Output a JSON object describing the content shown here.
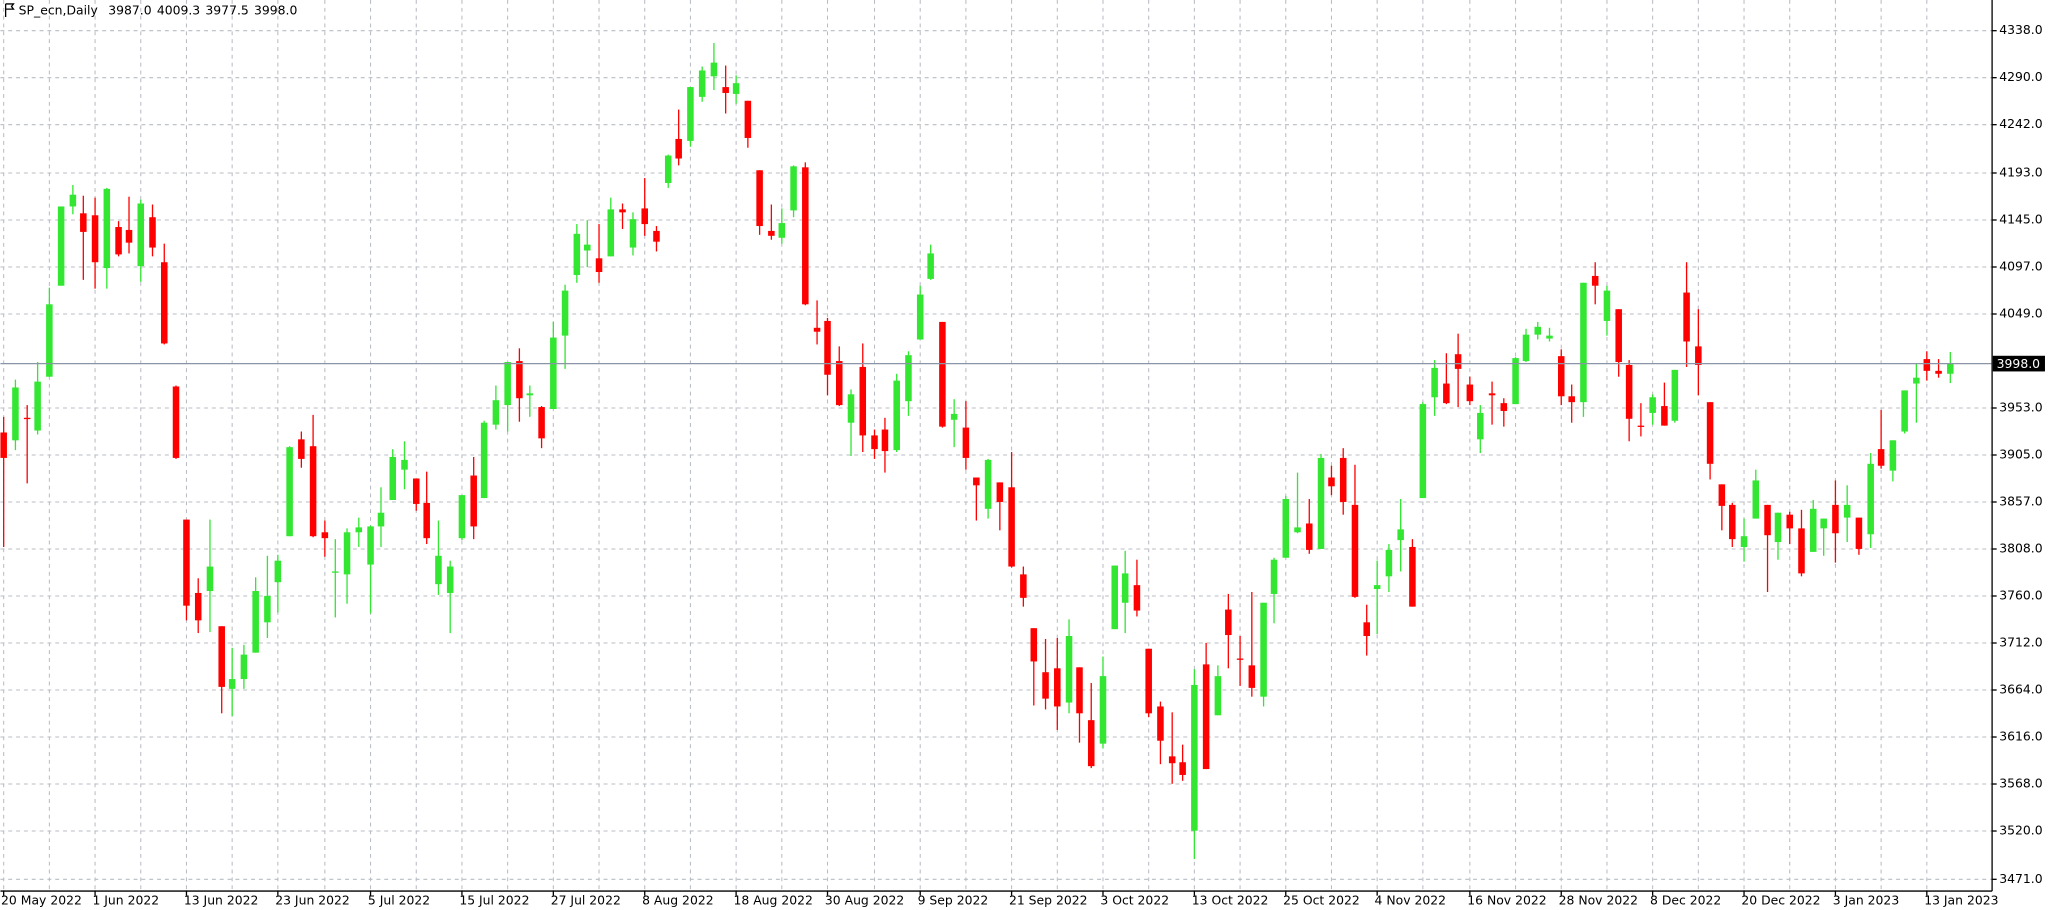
{
  "chart_data": {
    "type": "candlestick",
    "title": "SP_ecn,Daily",
    "header_ohlc": [
      "3987.0",
      "4009.3",
      "3977.5",
      "3998.0"
    ],
    "up_color": "#32e632",
    "down_color": "#ff0000",
    "grid": true,
    "ylim": [
      3459,
      4369
    ],
    "yticks": [
      {
        "value": 4338,
        "label": "4338.0"
      },
      {
        "value": 4290,
        "label": "4290.0"
      },
      {
        "value": 4242,
        "label": "4242.0"
      },
      {
        "value": 4193,
        "label": "4193.0"
      },
      {
        "value": 4145,
        "label": "4145.0"
      },
      {
        "value": 4097,
        "label": "4097.0"
      },
      {
        "value": 4049,
        "label": "4049.0"
      },
      {
        "value": 3953,
        "label": "3953.0"
      },
      {
        "value": 3905,
        "label": "3905.0"
      },
      {
        "value": 3857,
        "label": "3857.0"
      },
      {
        "value": 3808,
        "label": "3808.0"
      },
      {
        "value": 3760,
        "label": "3760.0"
      },
      {
        "value": 3712,
        "label": "3712.0"
      },
      {
        "value": 3664,
        "label": "3664.0"
      },
      {
        "value": 3616,
        "label": "3616.0"
      },
      {
        "value": 3568,
        "label": "3568.0"
      },
      {
        "value": 3520,
        "label": "3520.0"
      },
      {
        "value": 3471,
        "label": "3471.0"
      }
    ],
    "current_price": {
      "value": 3998,
      "label": "3998.0"
    },
    "categories": [
      "20 May 2022",
      null,
      null,
      null,
      null,
      null,
      null,
      null,
      "1 Jun 2022",
      null,
      null,
      null,
      null,
      null,
      null,
      null,
      "13 Jun 2022",
      null,
      null,
      null,
      null,
      null,
      null,
      null,
      "23 Jun 2022",
      null,
      null,
      null,
      null,
      null,
      null,
      null,
      "5 Jul 2022",
      null,
      null,
      null,
      null,
      null,
      null,
      null,
      "15 Jul 2022",
      null,
      null,
      null,
      null,
      null,
      null,
      null,
      "27 Jul 2022",
      null,
      null,
      null,
      null,
      null,
      null,
      null,
      "8 Aug 2022",
      null,
      null,
      null,
      null,
      null,
      null,
      null,
      "18 Aug 2022",
      null,
      null,
      null,
      null,
      null,
      null,
      null,
      "30 Aug 2022",
      null,
      null,
      null,
      null,
      null,
      null,
      null,
      "9 Sep 2022",
      null,
      null,
      null,
      null,
      null,
      null,
      null,
      "21 Sep 2022",
      null,
      null,
      null,
      null,
      null,
      null,
      null,
      "3 Oct 2022",
      null,
      null,
      null,
      null,
      null,
      null,
      null,
      "13 Oct 2022",
      null,
      null,
      null,
      null,
      null,
      null,
      null,
      "25 Oct 2022",
      null,
      null,
      null,
      null,
      null,
      null,
      null,
      "4 Nov 2022",
      null,
      null,
      null,
      null,
      null,
      null,
      null,
      "16 Nov 2022",
      null,
      null,
      null,
      null,
      null,
      null,
      null,
      "28 Nov 2022",
      null,
      null,
      null,
      null,
      null,
      null,
      null,
      "8 Dec 2022",
      null,
      null,
      null,
      null,
      null,
      null,
      null,
      "20 Dec 2022",
      null,
      null,
      null,
      null,
      null,
      null,
      null,
      "3 Jan 2023",
      null,
      null,
      null,
      null,
      null,
      null,
      null,
      "13 Jan 2023",
      null,
      null
    ],
    "open": [
      3927,
      3919,
      3942,
      3929,
      3984,
      4077,
      4158,
      4151,
      4149,
      4095,
      4137,
      4134,
      4097,
      4147,
      4101,
      3974,
      3838,
      3763,
      3765,
      3729,
      3665,
      3675,
      3702,
      3733,
      3774,
      3821,
      3920,
      3913,
      3825,
      3785,
      3782,
      3825,
      3792,
      3831,
      3858,
      3889,
      3880,
      3855,
      3772,
      3763,
      3819,
      3883,
      3860,
      3935,
      3955,
      4000,
      3965,
      3953,
      3951,
      4026,
      4088,
      4113,
      4105,
      4107,
      4155,
      4116,
      4156,
      4133,
      4182,
      4227,
      4225,
      4270,
      4291,
      4280,
      4273,
      4266,
      4195,
      4133,
      4126,
      4154,
      4198,
      4034,
      4041,
      4000,
      3937,
      3994,
      3924,
      3930,
      3909,
      3959,
      4022,
      4084,
      4040,
      3940,
      3932,
      3881,
      3849,
      3876,
      3871,
      3782,
      3727,
      3682,
      3686,
      3651,
      3687,
      3633,
      3609,
      3726,
      3753,
      3771,
      3706,
      3647,
      3596,
      3590,
      3520,
      3690,
      3638,
      3746,
      3696,
      3689,
      3657,
      3762,
      3799,
      3825,
      3834,
      3808,
      3881,
      3901,
      3853,
      3733,
      3767,
      3780,
      3817,
      3810,
      3860,
      3963,
      3977,
      4007,
      3976,
      3920,
      3967,
      3957,
      3956,
      4000,
      4027,
      4023,
      4005,
      3964,
      3958,
      4087,
      4041,
      4053,
      3996,
      3934,
      3947,
      3954,
      3939,
      4070,
      4015,
      3958,
      3874,
      3853,
      3810,
      3839,
      3853,
      3815,
      3843,
      3829,
      3805,
      3829,
      3853,
      3840,
      3840,
      3823,
      3910,
      3888,
      3928,
      3977,
      4002,
      3990,
      3987
    ],
    "high": [
      3943,
      3981,
      3955,
      3999,
      4075,
      4158,
      4180,
      4169,
      4167,
      4177,
      4143,
      4168,
      4165,
      4160,
      4120,
      3975,
      3838,
      3778,
      3838,
      3729,
      3707,
      3710,
      3779,
      3801,
      3802,
      3913,
      3928,
      3945,
      3837,
      3818,
      3829,
      3840,
      3832,
      3871,
      3910,
      3918,
      3880,
      3887,
      3837,
      3796,
      3863,
      3902,
      3939,
      3975,
      3999,
      4013,
      3975,
      3954,
      4040,
      4078,
      4140,
      4144,
      4140,
      4167,
      4161,
      4152,
      4187,
      4138,
      4211,
      4257,
      4280,
      4301,
      4325,
      4302,
      4292,
      4266,
      4195,
      4160,
      4156,
      4200,
      4203,
      4062,
      4044,
      4015,
      3971,
      4018,
      3930,
      3942,
      3987,
      4010,
      4077,
      4119,
      4040,
      3961,
      3959,
      3880,
      3900,
      3876,
      3907,
      3790,
      3727,
      3716,
      3717,
      3736,
      3687,
      3671,
      3698,
      3791,
      3806,
      3797,
      3706,
      3652,
      3641,
      3608,
      3685,
      3712,
      3689,
      3762,
      3719,
      3764,
      3753,
      3799,
      3862,
      3886,
      3859,
      3905,
      3893,
      3911,
      3894,
      3751,
      3796,
      3813,
      3859,
      3818,
      3958,
      4001,
      4008,
      4028,
      3984,
      3955,
      3979,
      3962,
      4004,
      4033,
      4040,
      4034,
      4012,
      3976,
      4080,
      4101,
      4077,
      4053,
      4001,
      3957,
      3966,
      3978,
      3991,
      4101,
      4053,
      3958,
      3874,
      3855,
      3839,
      3889,
      3853,
      3845,
      3846,
      3848,
      3858,
      3839,
      3878,
      3873,
      3840,
      3906,
      3950,
      3919,
      3970,
      3997,
      4010,
      4002,
      4009.3
    ],
    "low": [
      3810,
      3909,
      3875,
      3925,
      3984,
      4077,
      4150,
      4083,
      4074,
      4074,
      4107,
      4110,
      4081,
      4107,
      4017,
      3900,
      3735,
      3722,
      3723,
      3640,
      3637,
      3665,
      3702,
      3717,
      3743,
      3821,
      3891,
      3820,
      3800,
      3738,
      3752,
      3810,
      3742,
      3810,
      3858,
      3869,
      3847,
      3813,
      3761,
      3722,
      3817,
      3818,
      3860,
      3930,
      3928,
      3938,
      3943,
      3911,
      3951,
      3992,
      4080,
      4096,
      4080,
      4107,
      4135,
      4108,
      4128,
      4112,
      4177,
      4200,
      4219,
      4265,
      4277,
      4253,
      4263,
      4218,
      4129,
      4124,
      4120,
      4147,
      4057,
      4017,
      3965,
      3954,
      3903,
      3907,
      3900,
      3886,
      3907,
      3944,
      4022,
      4083,
      3932,
      3912,
      3889,
      3837,
      3839,
      3827,
      3789,
      3749,
      3648,
      3644,
      3623,
      3640,
      3610,
      3584,
      3604,
      3726,
      3722,
      3739,
      3636,
      3588,
      3568,
      3571,
      3491,
      3583,
      3638,
      3686,
      3668,
      3657,
      3647,
      3732,
      3799,
      3824,
      3803,
      3808,
      3863,
      3843,
      3758,
      3699,
      3721,
      3764,
      3785,
      3749,
      3860,
      3944,
      3956,
      3953,
      3955,
      3906,
      3935,
      3933,
      3956,
      3999,
      4022,
      4020,
      3955,
      3937,
      3943,
      4058,
      4026,
      3984,
      3918,
      3923,
      3935,
      3934,
      3937,
      3994,
      3965,
      3879,
      3827,
      3810,
      3795,
      3839,
      3764,
      3797,
      3813,
      3780,
      3805,
      3801,
      3794,
      3815,
      3802,
      3809,
      3890,
      3877,
      3926,
      3937,
      3980,
      3983,
      3977.5
    ],
    "close": [
      3901,
      3973,
      3941,
      3979,
      4058,
      4158,
      4170,
      4132,
      4101,
      4176,
      4109,
      4121,
      4161,
      4116,
      4018,
      3901,
      3750,
      3735,
      3790,
      3667,
      3675,
      3700,
      3765,
      3760,
      3796,
      3912,
      3900,
      3821,
      3819,
      3785,
      3825,
      3830,
      3831,
      3845,
      3902,
      3899,
      3854,
      3819,
      3801,
      3790,
      3863,
      3831,
      3937,
      3960,
      3999,
      3962,
      3967,
      3921,
      4024,
      4072,
      4130,
      4119,
      4091,
      4155,
      4152,
      4145,
      4140,
      4122,
      4210,
      4207,
      4280,
      4297,
      4305,
      4274,
      4284,
      4228,
      4138,
      4128,
      4141,
      4199,
      4058,
      4030,
      3986,
      3955,
      3966,
      3924,
      3910,
      3908,
      3980,
      4006,
      4068,
      4110,
      3933,
      3946,
      3901,
      3873,
      3899,
      3856,
      3790,
      3758,
      3693,
      3655,
      3647,
      3719,
      3640,
      3586,
      3678,
      3791,
      3783,
      3745,
      3640,
      3612,
      3589,
      3577,
      3669,
      3583,
      3678,
      3720,
      3695,
      3666,
      3753,
      3797,
      3859,
      3830,
      3807,
      3901,
      3872,
      3856,
      3759,
      3719,
      3771,
      3807,
      3828,
      3749,
      3956,
      3993,
      3957,
      3992,
      3959,
      3947,
      3965,
      3949,
      4003,
      4027,
      4035,
      4026,
      3964,
      3958,
      4080,
      4077,
      4072,
      3999,
      3941,
      3933,
      3963,
      3934,
      3991,
      4020,
      3996,
      3895,
      3852,
      3818,
      3821,
      3878,
      3822,
      3845,
      3829,
      3783,
      3849,
      3839,
      3824,
      3853,
      3808,
      3895,
      3893,
      3919,
      3970,
      3983,
      3990,
      3987,
      3998.0
    ]
  }
}
